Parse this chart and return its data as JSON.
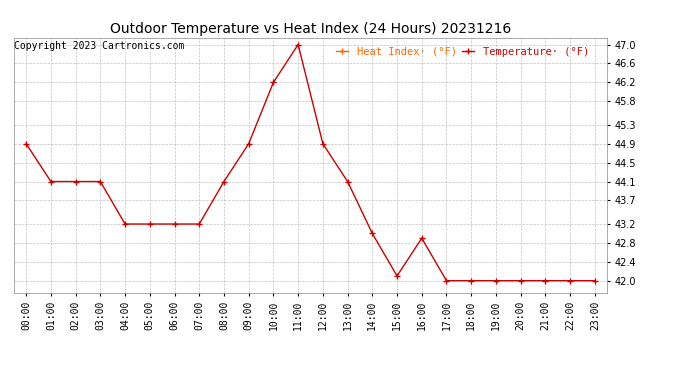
{
  "title": "Outdoor Temperature vs Heat Index (24 Hours) 20231216",
  "copyright": "Copyright 2023 Cartronics.com",
  "legend_heat_index": "Heat Index· (°F)",
  "legend_temperature": "Temperature· (°F)",
  "x_labels": [
    "00:00",
    "01:00",
    "02:00",
    "03:00",
    "04:00",
    "05:00",
    "06:00",
    "07:00",
    "08:00",
    "09:00",
    "10:00",
    "11:00",
    "12:00",
    "13:00",
    "14:00",
    "15:00",
    "16:00",
    "17:00",
    "18:00",
    "19:00",
    "20:00",
    "21:00",
    "22:00",
    "23:00"
  ],
  "temperature": [
    44.9,
    44.1,
    44.1,
    44.1,
    43.2,
    43.2,
    43.2,
    43.2,
    44.1,
    44.9,
    46.2,
    47.0,
    44.9,
    44.1,
    43.0,
    42.1,
    42.9,
    42.0,
    42.0,
    42.0,
    42.0,
    42.0,
    42.0,
    42.0
  ],
  "heat_index": [
    44.9,
    44.1,
    44.1,
    44.1,
    43.2,
    43.2,
    43.2,
    43.2,
    44.1,
    44.9,
    46.2,
    47.0,
    44.9,
    44.1,
    43.0,
    42.1,
    42.9,
    42.0,
    42.0,
    42.0,
    42.0,
    42.0,
    42.0,
    42.0
  ],
  "temp_color": "#cc0000",
  "heat_index_color": "#ff6600",
  "ylim_min": 41.75,
  "ylim_max": 47.15,
  "yticks": [
    42.0,
    42.4,
    42.8,
    43.2,
    43.7,
    44.1,
    44.5,
    44.9,
    45.3,
    45.8,
    46.2,
    46.6,
    47.0
  ],
  "background_color": "#ffffff",
  "grid_color": "#bbbbbb",
  "title_fontsize": 10,
  "copyright_fontsize": 7,
  "tick_fontsize": 7,
  "legend_fontsize": 7.5
}
